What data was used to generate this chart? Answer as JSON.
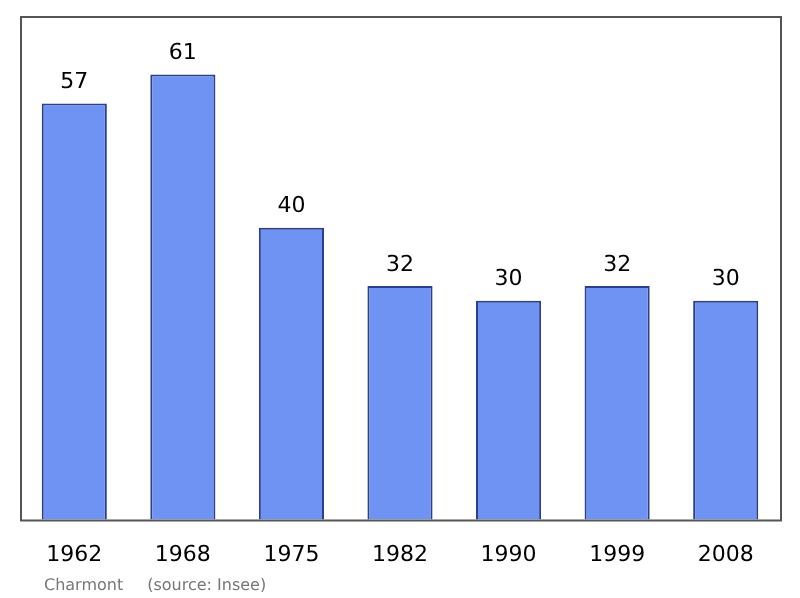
{
  "chart_data": {
    "type": "bar",
    "categories": [
      "1962",
      "1968",
      "1975",
      "1982",
      "1990",
      "1999",
      "2008"
    ],
    "values": [
      57,
      61,
      40,
      32,
      30,
      32,
      30
    ],
    "color": "#6f93f3",
    "ylim": [
      0,
      69
    ],
    "data_labels": true,
    "tick_labels": "x",
    "annotations": [
      "Charmont",
      "(source: Insee)"
    ]
  }
}
